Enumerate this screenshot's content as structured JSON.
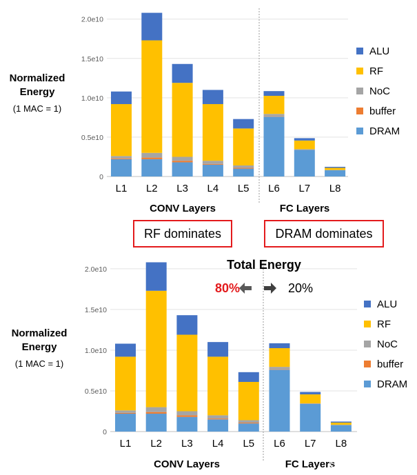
{
  "chart_data": [
    {
      "type": "bar",
      "stacked": true,
      "categories": [
        "L1",
        "L2",
        "L3",
        "L4",
        "L5",
        "L6",
        "L7",
        "L8"
      ],
      "ylabel": "Normalized Energy",
      "ylabel_sub": "(1 MAC = 1)",
      "ylim": [
        0,
        20500000000.0
      ],
      "yticks": [
        0,
        5000000000.0,
        10000000000.0,
        15000000000.0,
        20000000000.0
      ],
      "ytick_labels": [
        "0",
        "0.5e10",
        "1.0e10",
        "1.5e10",
        "2.0e10"
      ],
      "grid": true,
      "legend_position": "right",
      "series": [
        {
          "name": "DRAM",
          "color": "#5b9bd5",
          "values": [
            2200000000.0,
            2200000000.0,
            1800000000.0,
            1500000000.0,
            1000000000.0,
            7600000000.0,
            3400000000.0,
            800000000.0
          ]
        },
        {
          "name": "buffer",
          "color": "#ed7d31",
          "values": [
            100000000.0,
            200000000.0,
            200000000.0,
            100000000.0,
            100000000.0,
            50000000.0,
            20000000.0,
            10000000.0
          ]
        },
        {
          "name": "NoC",
          "color": "#a5a5a5",
          "values": [
            300000000.0,
            600000000.0,
            500000000.0,
            400000000.0,
            300000000.0,
            300000000.0,
            50000000.0,
            20000000.0
          ]
        },
        {
          "name": "RF",
          "color": "#ffc000",
          "values": [
            6600000000.0,
            14300000000.0,
            9400000000.0,
            7200000000.0,
            4700000000.0,
            2300000000.0,
            1100000000.0,
            270000000.0
          ]
        },
        {
          "name": "ALU",
          "color": "#4472c4",
          "values": [
            1600000000.0,
            3500000000.0,
            2400000000.0,
            1800000000.0,
            1200000000.0,
            600000000.0,
            300000000.0,
            130000000.0
          ]
        }
      ],
      "legend_order": [
        "ALU",
        "RF",
        "NoC",
        "buffer",
        "DRAM"
      ],
      "groups": [
        {
          "label": "CONV Layers",
          "callout": "RF dominates"
        },
        {
          "label": "FC Layers",
          "callout": "DRAM dominates"
        }
      ]
    },
    {
      "type": "bar",
      "stacked": true,
      "title": "Total Energy",
      "split_left": "80%",
      "split_right": "20%",
      "categories": [
        "L1",
        "L2",
        "L3",
        "L4",
        "L5",
        "L6",
        "L7",
        "L8"
      ],
      "ylabel": "Normalized Energy",
      "ylabel_sub": "(1 MAC = 1)",
      "ylim": [
        0,
        20500000000.0
      ],
      "yticks": [
        0,
        5000000000.0,
        10000000000.0,
        15000000000.0,
        20000000000.0
      ],
      "ytick_labels": [
        "0",
        "0.5e10",
        "1.0e10",
        "1.5e10",
        "2.0e10"
      ],
      "grid": true,
      "legend_position": "right",
      "series": [
        {
          "name": "DRAM",
          "color": "#5b9bd5",
          "values": [
            2200000000.0,
            2200000000.0,
            1800000000.0,
            1500000000.0,
            1000000000.0,
            7600000000.0,
            3400000000.0,
            800000000.0
          ]
        },
        {
          "name": "buffer",
          "color": "#ed7d31",
          "values": [
            100000000.0,
            200000000.0,
            200000000.0,
            100000000.0,
            100000000.0,
            50000000.0,
            20000000.0,
            10000000.0
          ]
        },
        {
          "name": "NoC",
          "color": "#a5a5a5",
          "values": [
            300000000.0,
            600000000.0,
            500000000.0,
            400000000.0,
            300000000.0,
            300000000.0,
            50000000.0,
            20000000.0
          ]
        },
        {
          "name": "RF",
          "color": "#ffc000",
          "values": [
            6600000000.0,
            14300000000.0,
            9400000000.0,
            7200000000.0,
            4700000000.0,
            2300000000.0,
            1100000000.0,
            270000000.0
          ]
        },
        {
          "name": "ALU",
          "color": "#4472c4",
          "values": [
            1600000000.0,
            3500000000.0,
            2400000000.0,
            1800000000.0,
            1200000000.0,
            600000000.0,
            300000000.0,
            130000000.0
          ]
        }
      ],
      "legend_order": [
        "ALU",
        "RF",
        "NoC",
        "buffer",
        "DRAM"
      ],
      "groups": [
        {
          "label": "CONV Layers"
        },
        {
          "label": "FC Layers"
        }
      ]
    }
  ],
  "watermark": "CSDN @被选召的孩子"
}
